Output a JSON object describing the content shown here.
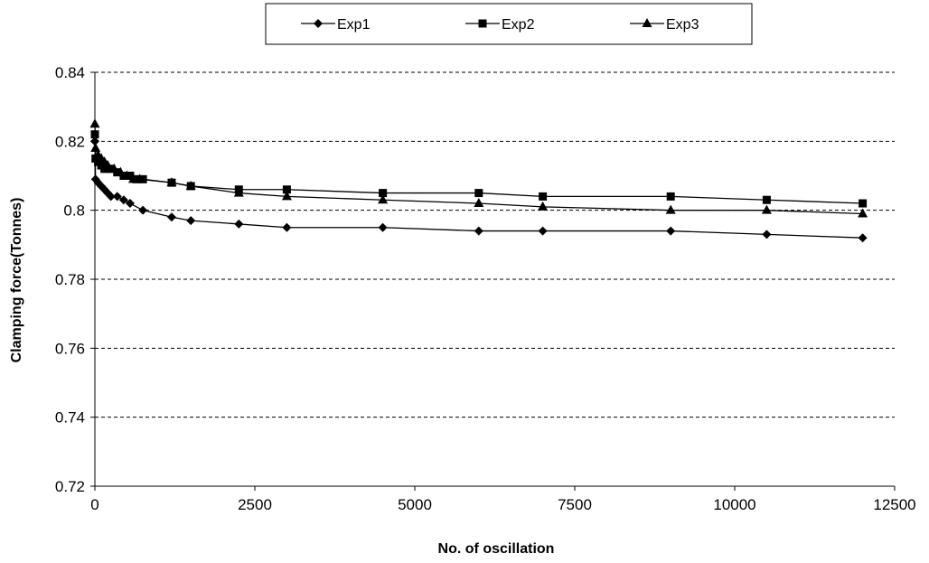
{
  "chart_data": {
    "type": "line",
    "title": "",
    "xlabel": "No. of oscillation",
    "ylabel": "Clamping force(Tonnes)",
    "xlim": [
      0,
      12500
    ],
    "ylim": [
      0.72,
      0.84
    ],
    "x_ticks": [
      0,
      2500,
      5000,
      7500,
      10000,
      12500
    ],
    "x_tick_labels": [
      "0",
      "2500",
      "5000",
      "7500",
      "10000",
      "12500"
    ],
    "y_ticks": [
      0.72,
      0.74,
      0.76,
      0.78,
      0.8,
      0.82,
      0.84
    ],
    "y_tick_labels": [
      "0.72",
      "0.74",
      "0.76",
      "0.78",
      "0.8",
      "0.82",
      "0.84"
    ],
    "grid": "horizontal dashed",
    "legend_position": "top",
    "series": [
      {
        "name": "Exp1",
        "marker": "diamond",
        "points": [
          [
            0,
            0.82
          ],
          [
            10,
            0.809
          ],
          [
            50,
            0.808
          ],
          [
            100,
            0.807
          ],
          [
            150,
            0.806
          ],
          [
            200,
            0.805
          ],
          [
            250,
            0.804
          ],
          [
            350,
            0.804
          ],
          [
            450,
            0.803
          ],
          [
            550,
            0.802
          ],
          [
            750,
            0.8
          ],
          [
            1200,
            0.798
          ],
          [
            1500,
            0.797
          ],
          [
            2250,
            0.796
          ],
          [
            3000,
            0.795
          ],
          [
            4500,
            0.795
          ],
          [
            6000,
            0.794
          ],
          [
            7000,
            0.794
          ],
          [
            9000,
            0.794
          ],
          [
            10500,
            0.793
          ],
          [
            12000,
            0.792
          ]
        ]
      },
      {
        "name": "Exp2",
        "marker": "square",
        "points": [
          [
            0,
            0.822
          ],
          [
            10,
            0.815
          ],
          [
            50,
            0.814
          ],
          [
            100,
            0.813
          ],
          [
            150,
            0.812
          ],
          [
            250,
            0.812
          ],
          [
            350,
            0.811
          ],
          [
            450,
            0.81
          ],
          [
            550,
            0.81
          ],
          [
            650,
            0.809
          ],
          [
            750,
            0.809
          ],
          [
            1200,
            0.808
          ],
          [
            1500,
            0.807
          ],
          [
            2250,
            0.806
          ],
          [
            3000,
            0.806
          ],
          [
            4500,
            0.805
          ],
          [
            6000,
            0.805
          ],
          [
            7000,
            0.804
          ],
          [
            9000,
            0.804
          ],
          [
            10500,
            0.803
          ],
          [
            12000,
            0.802
          ]
        ]
      },
      {
        "name": "Exp3",
        "marker": "triangle",
        "points": [
          [
            0,
            0.825
          ],
          [
            10,
            0.818
          ],
          [
            50,
            0.816
          ],
          [
            100,
            0.815
          ],
          [
            150,
            0.814
          ],
          [
            200,
            0.813
          ],
          [
            300,
            0.812
          ],
          [
            400,
            0.811
          ],
          [
            500,
            0.81
          ],
          [
            600,
            0.809
          ],
          [
            700,
            0.809
          ],
          [
            1200,
            0.808
          ],
          [
            1500,
            0.807
          ],
          [
            2250,
            0.805
          ],
          [
            3000,
            0.804
          ],
          [
            4500,
            0.803
          ],
          [
            6000,
            0.802
          ],
          [
            7000,
            0.801
          ],
          [
            9000,
            0.8
          ],
          [
            10500,
            0.8
          ],
          [
            12000,
            0.799
          ]
        ]
      }
    ]
  }
}
